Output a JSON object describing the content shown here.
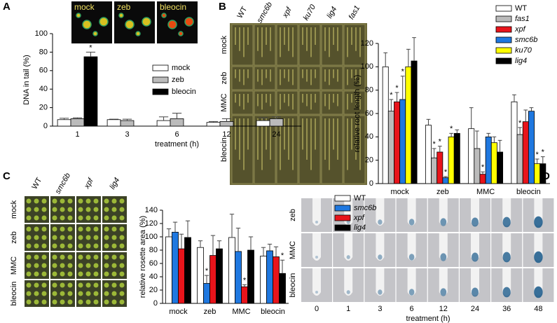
{
  "chart_data": [
    {
      "type": "bar",
      "panel": "A",
      "ylabel": "DNA in tail (%)",
      "xlabel": "treatment (h)",
      "categories": [
        "1",
        "3",
        "6",
        "12",
        "24"
      ],
      "ylim": [
        0,
        100
      ],
      "yticks": [
        0,
        20,
        40,
        60,
        80,
        100
      ],
      "series": [
        {
          "name": "mock",
          "color": "#ffffff",
          "values": [
            7,
            7,
            6,
            4,
            6
          ],
          "errors": [
            1.5,
            0.5,
            4,
            1,
            3
          ],
          "significance": [
            null,
            null,
            null,
            null,
            null
          ]
        },
        {
          "name": "zeb",
          "color": "#bbbbbb",
          "values": [
            8,
            6,
            8,
            5,
            8
          ],
          "errors": [
            1,
            1.5,
            6,
            3,
            2
          ],
          "significance": [
            null,
            null,
            null,
            null,
            null
          ]
        },
        {
          "name": "bleocin",
          "color": "#000000",
          "values": [
            75,
            null,
            null,
            null,
            null
          ],
          "errors": [
            5,
            null,
            null,
            null,
            null
          ],
          "significance": [
            "*",
            null,
            null,
            null,
            null
          ]
        }
      ]
    },
    {
      "type": "bar",
      "panel": "B",
      "ylabel": "relative root length (%)",
      "categories": [
        "mock",
        "zeb",
        "MMC",
        "bleocin"
      ],
      "ylim": [
        0,
        120
      ],
      "yticks": [
        0,
        20,
        40,
        60,
        80,
        100,
        120
      ],
      "series": [
        {
          "name": "WT",
          "color": "#ffffff",
          "values": [
            100,
            50,
            47,
            70
          ],
          "errors": [
            12,
            5,
            18,
            6
          ],
          "significance": [
            null,
            null,
            null,
            null
          ]
        },
        {
          "name": "fas1",
          "color": "#bbbbbb",
          "values": [
            62,
            22,
            30,
            42
          ],
          "errors": [
            10,
            8,
            15,
            6
          ],
          "significance": [
            "*",
            "*",
            null,
            "*"
          ]
        },
        {
          "name": "xpf",
          "color": "#e8141b",
          "values": [
            70,
            27,
            8,
            53
          ],
          "errors": [
            8,
            5,
            2,
            10
          ],
          "significance": [
            "*",
            "*",
            "*",
            null
          ]
        },
        {
          "name": "smc6b",
          "color": "#1f78e0",
          "values": [
            72,
            5,
            40,
            62
          ],
          "errors": [
            20,
            1,
            3,
            3
          ],
          "significance": [
            "*",
            "*",
            null,
            null
          ]
        },
        {
          "name": "ku70",
          "color": "#ffff00",
          "values": [
            100,
            40,
            35,
            17
          ],
          "errors": [
            15,
            3,
            5,
            4
          ],
          "significance": [
            null,
            "*",
            null,
            "*"
          ]
        },
        {
          "name": "lig4",
          "color": "#000000",
          "values": [
            105,
            43,
            27,
            17
          ],
          "errors": [
            20,
            3,
            10,
            6
          ],
          "significance": [
            null,
            null,
            null,
            "*"
          ]
        }
      ]
    },
    {
      "type": "bar",
      "panel": "C",
      "ylabel": "relative rosette area (%)",
      "categories": [
        "mock",
        "zeb",
        "MMC",
        "bleocin"
      ],
      "ylim": [
        0,
        140
      ],
      "yticks": [
        0,
        20,
        40,
        60,
        80,
        100,
        120,
        140
      ],
      "series": [
        {
          "name": "WT",
          "color": "#ffffff",
          "values": [
            100,
            84,
            99,
            71
          ],
          "errors": [
            12,
            10,
            35,
            13
          ],
          "significance": [
            null,
            null,
            null,
            null
          ]
        },
        {
          "name": "smc6b",
          "color": "#1f78e0",
          "values": [
            107,
            30,
            78,
            79
          ],
          "errors": [
            15,
            12,
            35,
            10
          ],
          "significance": [
            null,
            "*",
            null,
            null
          ]
        },
        {
          "name": "xpf",
          "color": "#e8141b",
          "values": [
            82,
            72,
            25,
            70
          ],
          "errors": [
            22,
            30,
            3,
            15
          ],
          "significance": [
            null,
            null,
            "*",
            null
          ]
        },
        {
          "name": "lig4",
          "color": "#000000",
          "values": [
            99,
            82,
            80,
            45
          ],
          "errors": [
            25,
            12,
            20,
            20
          ],
          "significance": [
            null,
            null,
            null,
            "*"
          ]
        }
      ]
    }
  ],
  "photos": [
    {
      "labels": [
        "mock",
        "zeb",
        "bleocin"
      ]
    },
    {
      "columns": [
        "WT",
        "smc6b",
        "xpf",
        "ku70",
        "lig4",
        "fas1"
      ],
      "rows": [
        "mock",
        "zeb",
        "MMC",
        "bleocin"
      ]
    },
    {
      "columns": [
        "WT",
        "smc6b",
        "xpf",
        "lig4"
      ],
      "rows": [
        "mock",
        "zeb",
        "MMC",
        "bleocin"
      ]
    },
    {
      "panel": "D",
      "rows": [
        "zeb",
        "MMC",
        "bleocin"
      ],
      "columns": [
        "0",
        "1",
        "3",
        "6",
        "12",
        "24",
        "36",
        "48"
      ],
      "xlabel": "treatment (h)"
    }
  ]
}
